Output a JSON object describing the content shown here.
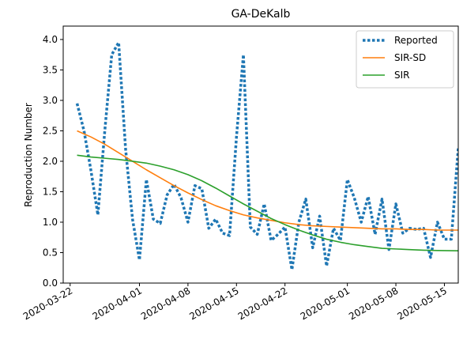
{
  "chart_data": {
    "type": "line",
    "title": "GA-DeKalb",
    "xlabel": "",
    "ylabel": "Reproduction Number",
    "x_ticks": [
      "2020-03-22",
      "2020-04-01",
      "2020-04-08",
      "2020-04-15",
      "2020-04-22",
      "2020-05-01",
      "2020-05-08",
      "2020-05-15"
    ],
    "y_ticks": [
      0.0,
      0.5,
      1.0,
      1.5,
      2.0,
      2.5,
      3.0,
      3.5,
      4.0
    ],
    "y_tick_labels": [
      "0.0",
      "0.5",
      "1.0",
      "1.5",
      "2.0",
      "2.5",
      "3.0",
      "3.5",
      "4.0"
    ],
    "xlim": [
      "2020-03-21",
      "2020-05-17"
    ],
    "ylim": [
      0,
      4.22
    ],
    "legend_position": "top-right",
    "grid": false,
    "series": [
      {
        "name": "Reported",
        "style": "dotted",
        "color": "#1f77b4",
        "points": [
          [
            "2020-03-23",
            2.95
          ],
          [
            "2020-03-24",
            2.5
          ],
          [
            "2020-03-25",
            1.85
          ],
          [
            "2020-03-26",
            1.12
          ],
          [
            "2020-03-27",
            2.5
          ],
          [
            "2020-03-28",
            3.75
          ],
          [
            "2020-03-29",
            3.95
          ],
          [
            "2020-03-30",
            2.2
          ],
          [
            "2020-03-31",
            1.05
          ],
          [
            "2020-04-01",
            0.38
          ],
          [
            "2020-04-02",
            1.7
          ],
          [
            "2020-04-03",
            1.05
          ],
          [
            "2020-04-04",
            0.98
          ],
          [
            "2020-04-05",
            1.45
          ],
          [
            "2020-04-06",
            1.62
          ],
          [
            "2020-04-07",
            1.4
          ],
          [
            "2020-04-08",
            1.0
          ],
          [
            "2020-04-09",
            1.6
          ],
          [
            "2020-04-10",
            1.55
          ],
          [
            "2020-04-11",
            0.9
          ],
          [
            "2020-04-12",
            1.05
          ],
          [
            "2020-04-13",
            0.82
          ],
          [
            "2020-04-14",
            0.78
          ],
          [
            "2020-04-15",
            2.4
          ],
          [
            "2020-04-16",
            3.75
          ],
          [
            "2020-04-17",
            0.92
          ],
          [
            "2020-04-18",
            0.8
          ],
          [
            "2020-04-19",
            1.3
          ],
          [
            "2020-04-20",
            0.7
          ],
          [
            "2020-04-21",
            0.8
          ],
          [
            "2020-04-22",
            0.92
          ],
          [
            "2020-04-23",
            0.22
          ],
          [
            "2020-04-24",
            1.0
          ],
          [
            "2020-04-25",
            1.38
          ],
          [
            "2020-04-26",
            0.58
          ],
          [
            "2020-04-27",
            1.1
          ],
          [
            "2020-04-28",
            0.28
          ],
          [
            "2020-04-29",
            0.9
          ],
          [
            "2020-04-30",
            0.7
          ],
          [
            "2020-05-01",
            1.7
          ],
          [
            "2020-05-02",
            1.4
          ],
          [
            "2020-05-03",
            1.0
          ],
          [
            "2020-05-04",
            1.42
          ],
          [
            "2020-05-05",
            0.8
          ],
          [
            "2020-05-06",
            1.38
          ],
          [
            "2020-05-07",
            0.55
          ],
          [
            "2020-05-08",
            1.3
          ],
          [
            "2020-05-09",
            0.82
          ],
          [
            "2020-05-10",
            0.9
          ],
          [
            "2020-05-11",
            0.88
          ],
          [
            "2020-05-12",
            0.9
          ],
          [
            "2020-05-13",
            0.42
          ],
          [
            "2020-05-14",
            1.0
          ],
          [
            "2020-05-15",
            0.72
          ],
          [
            "2020-05-16",
            0.72
          ],
          [
            "2020-05-17",
            2.22
          ]
        ]
      },
      {
        "name": "SIR-SD",
        "style": "solid",
        "color": "#ff7f0e",
        "points": [
          [
            "2020-03-23",
            2.5
          ],
          [
            "2020-03-25",
            2.4
          ],
          [
            "2020-03-27",
            2.28
          ],
          [
            "2020-03-29",
            2.14
          ],
          [
            "2020-03-31",
            2.0
          ],
          [
            "2020-04-02",
            1.86
          ],
          [
            "2020-04-04",
            1.73
          ],
          [
            "2020-04-06",
            1.6
          ],
          [
            "2020-04-08",
            1.48
          ],
          [
            "2020-04-10",
            1.37
          ],
          [
            "2020-04-12",
            1.27
          ],
          [
            "2020-04-14",
            1.19
          ],
          [
            "2020-04-16",
            1.12
          ],
          [
            "2020-04-18",
            1.07
          ],
          [
            "2020-04-20",
            1.03
          ],
          [
            "2020-04-22",
            0.99
          ],
          [
            "2020-04-24",
            0.96
          ],
          [
            "2020-04-26",
            0.94
          ],
          [
            "2020-04-28",
            0.93
          ],
          [
            "2020-04-30",
            0.92
          ],
          [
            "2020-05-02",
            0.91
          ],
          [
            "2020-05-04",
            0.9
          ],
          [
            "2020-05-06",
            0.89
          ],
          [
            "2020-05-08",
            0.89
          ],
          [
            "2020-05-10",
            0.88
          ],
          [
            "2020-05-12",
            0.88
          ],
          [
            "2020-05-14",
            0.87
          ],
          [
            "2020-05-17",
            0.87
          ]
        ]
      },
      {
        "name": "SIR",
        "style": "solid",
        "color": "#2ca02c",
        "points": [
          [
            "2020-03-23",
            2.1
          ],
          [
            "2020-03-25",
            2.07
          ],
          [
            "2020-03-27",
            2.05
          ],
          [
            "2020-03-29",
            2.03
          ],
          [
            "2020-03-31",
            2.0
          ],
          [
            "2020-04-02",
            1.97
          ],
          [
            "2020-04-04",
            1.92
          ],
          [
            "2020-04-06",
            1.86
          ],
          [
            "2020-04-08",
            1.78
          ],
          [
            "2020-04-10",
            1.68
          ],
          [
            "2020-04-12",
            1.56
          ],
          [
            "2020-04-14",
            1.43
          ],
          [
            "2020-04-16",
            1.3
          ],
          [
            "2020-04-18",
            1.18
          ],
          [
            "2020-04-20",
            1.06
          ],
          [
            "2020-04-22",
            0.96
          ],
          [
            "2020-04-24",
            0.87
          ],
          [
            "2020-04-26",
            0.79
          ],
          [
            "2020-04-28",
            0.72
          ],
          [
            "2020-04-30",
            0.67
          ],
          [
            "2020-05-02",
            0.63
          ],
          [
            "2020-05-04",
            0.6
          ],
          [
            "2020-05-06",
            0.57
          ],
          [
            "2020-05-08",
            0.56
          ],
          [
            "2020-05-10",
            0.55
          ],
          [
            "2020-05-12",
            0.54
          ],
          [
            "2020-05-14",
            0.535
          ],
          [
            "2020-05-17",
            0.53
          ]
        ]
      }
    ]
  }
}
